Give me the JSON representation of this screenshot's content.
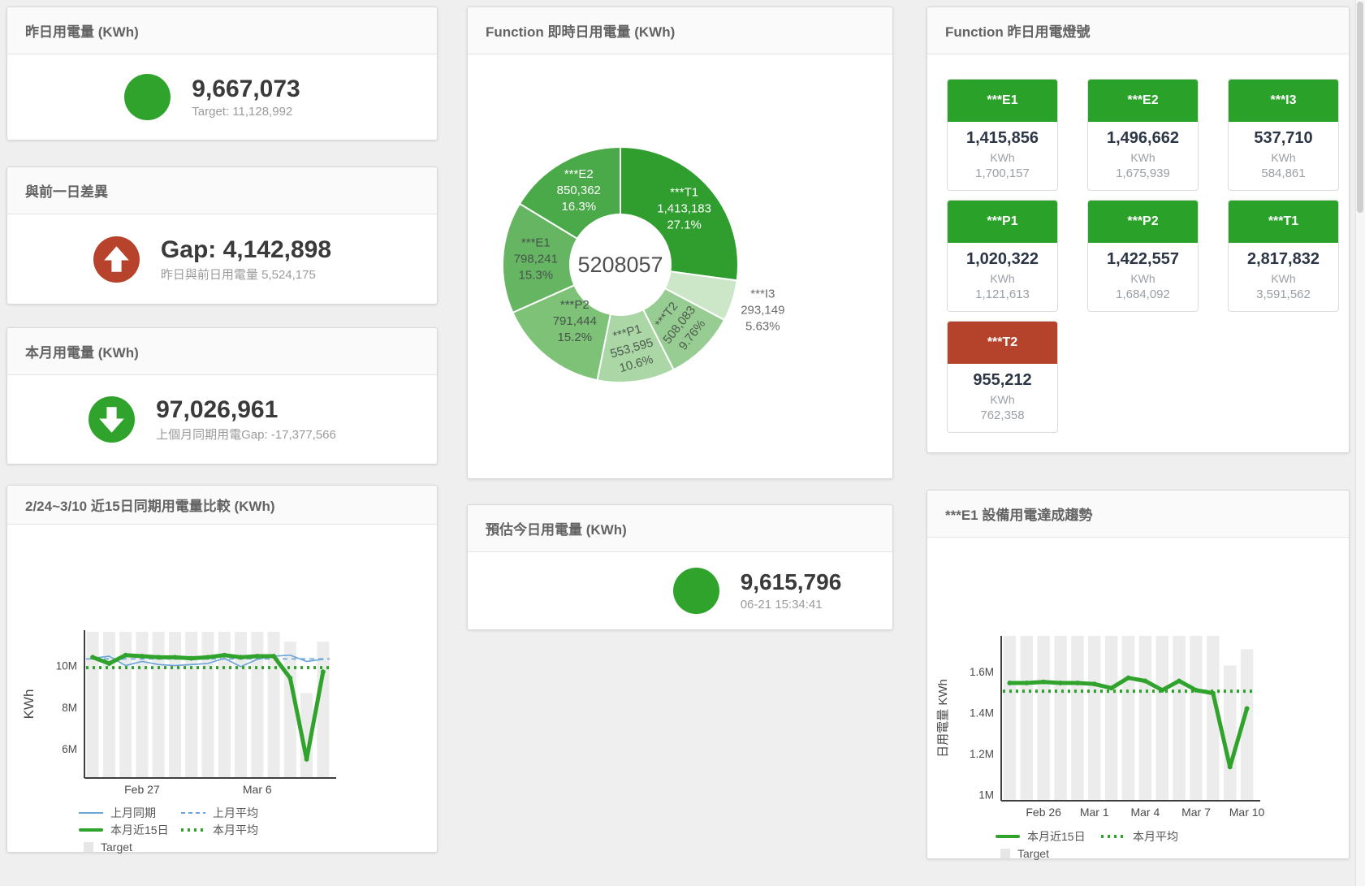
{
  "colors": {
    "green": "#2fa32c",
    "red": "#b8432d",
    "tile_green": "#2aa22a",
    "tile_red": "#b5432c",
    "bar_grey": "#ececec",
    "blue": "#6ba4d6",
    "axis": "#3f3f3f"
  },
  "cards": {
    "yesterday": {
      "title": "昨日用電量 (KWh)",
      "value": "9,667,073",
      "sub": "Target: 11,128,992"
    },
    "prev_gap": {
      "title": "與前一日差異",
      "value": "Gap: 4,142,898",
      "sub": "昨日與前日用電量 5,524,175"
    },
    "month": {
      "title": "本月用電量 (KWh)",
      "value": "97,026,961",
      "sub": "上個月同期用電Gap: -17,377,566"
    },
    "realtime": {
      "title": "Function 即時日用電量 (KWh)"
    },
    "estimate": {
      "title": "預估今日用電量 (KWh)",
      "value": "9,615,796",
      "sub": "06-21 15:34:41"
    },
    "lights": {
      "title": "Function 昨日用電燈號"
    },
    "compare": {
      "title": "2/24~3/10 近15日同期用電量比較 (KWh)"
    },
    "trend": {
      "title": "***E1 設備用電達成趨勢"
    }
  },
  "lights_tiles": [
    {
      "name": "***E1",
      "value": "1,415,856",
      "unit": "KWh",
      "target": "1,700,157",
      "status": "green"
    },
    {
      "name": "***E2",
      "value": "1,496,662",
      "unit": "KWh",
      "target": "1,675,939",
      "status": "green"
    },
    {
      "name": "***I3",
      "value": "537,710",
      "unit": "KWh",
      "target": "584,861",
      "status": "green"
    },
    {
      "name": "***P1",
      "value": "1,020,322",
      "unit": "KWh",
      "target": "1,121,613",
      "status": "green"
    },
    {
      "name": "***P2",
      "value": "1,422,557",
      "unit": "KWh",
      "target": "1,684,092",
      "status": "green"
    },
    {
      "name": "***T1",
      "value": "2,817,832",
      "unit": "KWh",
      "target": "3,591,562",
      "status": "green"
    },
    {
      "name": "***T2",
      "value": "955,212",
      "unit": "KWh",
      "target": "762,358",
      "status": "red"
    }
  ],
  "chart_data": [
    {
      "type": "pie",
      "title": "Function 即時日用電量 (KWh)",
      "center_total": "5208057",
      "slices": [
        {
          "name": "***T1",
          "value": 1413183,
          "label_value": "1,413,183",
          "pct": "27.1%",
          "color": "#2f9e2f",
          "text": "#ffffff"
        },
        {
          "name": "***I3",
          "value": 293149,
          "label_value": "293,149",
          "pct": "5.63%",
          "color": "#cbe7c8",
          "text": "#6b6b6b",
          "outside": true
        },
        {
          "name": "***T2",
          "value": 508083,
          "label_value": "508,083",
          "pct": "9.76%",
          "color": "#97cd92",
          "text": "#4d5c4d",
          "rotate": -52
        },
        {
          "name": "***P1",
          "value": 553595,
          "label_value": "553,595",
          "pct": "10.6%",
          "color": "#abd7a6",
          "text": "#4d5c4d",
          "rotate": -16
        },
        {
          "name": "***P2",
          "value": 791444,
          "label_value": "791,444",
          "pct": "15.2%",
          "color": "#7dc277",
          "text": "#45544a",
          "rf": 0.62
        },
        {
          "name": "***E1",
          "value": 798241,
          "label_value": "798,241",
          "pct": "15.3%",
          "color": "#66b562",
          "text": "#45544a"
        },
        {
          "name": "***E2",
          "value": 850362,
          "label_value": "850,362",
          "pct": "16.3%",
          "color": "#4aa948",
          "text": "#ffffff"
        }
      ]
    },
    {
      "type": "line",
      "title": "2/24~3/10 近15日同期用電量比較 (KWh)",
      "ylabel": "KWh",
      "n": 15,
      "ylim": [
        4.6,
        11.7
      ],
      "yticks": [
        {
          "v": 6,
          "t": "6M"
        },
        {
          "v": 8,
          "t": "8M"
        },
        {
          "v": 10,
          "t": "10M"
        }
      ],
      "xticks": [
        {
          "i": 3,
          "t": "Feb 27"
        },
        {
          "i": 10,
          "t": "Mar 6"
        }
      ],
      "series": [
        {
          "name": "Target",
          "style": "bar",
          "values": [
            11.62,
            11.62,
            11.62,
            11.62,
            11.62,
            11.62,
            11.62,
            11.62,
            11.62,
            11.62,
            11.62,
            11.62,
            11.15,
            8.68,
            11.15
          ]
        },
        {
          "name": "上月平均",
          "style": "dashed_blue",
          "const": 10.32
        },
        {
          "name": "上月同期",
          "style": "line_blue",
          "values": [
            10.35,
            10.45,
            10.0,
            10.2,
            10.05,
            10.0,
            10.05,
            10.1,
            10.35,
            9.95,
            10.3,
            10.45,
            10.5,
            10.2,
            10.3
          ]
        },
        {
          "name": "本月平均",
          "style": "dotted_green",
          "const": 9.9
        },
        {
          "name": "本月近15日",
          "style": "line_green",
          "markers": true,
          "values": [
            10.4,
            10.1,
            10.5,
            10.45,
            10.4,
            10.4,
            10.35,
            10.4,
            10.5,
            10.4,
            10.45,
            10.45,
            9.4,
            5.5,
            9.7
          ]
        }
      ],
      "legend_rows": [
        [
          {
            "label": "上月同期",
            "style": "line_blue"
          },
          {
            "label": "上月平均",
            "style": "dashed_blue"
          }
        ],
        [
          {
            "label": "本月近15日",
            "style": "line_green"
          },
          {
            "label": "本月平均",
            "style": "dotted_green"
          }
        ],
        [
          {
            "label": "Target",
            "style": "bar"
          }
        ]
      ]
    },
    {
      "type": "line",
      "title": "***E1 設備用電達成趨勢",
      "ylabel": "日用電量 KWh",
      "n": 15,
      "ylim": [
        0.97,
        1.775
      ],
      "yticks": [
        {
          "v": 1,
          "t": "1M"
        },
        {
          "v": 1.2,
          "t": "1.2M"
        },
        {
          "v": 1.4,
          "t": "1.4M"
        },
        {
          "v": 1.6,
          "t": "1.6M"
        }
      ],
      "xticks": [
        {
          "i": 2,
          "t": "Feb 26"
        },
        {
          "i": 5,
          "t": "Mar 1"
        },
        {
          "i": 8,
          "t": "Mar 4"
        },
        {
          "i": 11,
          "t": "Mar 7"
        },
        {
          "i": 14,
          "t": "Mar 10"
        }
      ],
      "series": [
        {
          "name": "Target",
          "style": "bar",
          "values": [
            1.775,
            1.775,
            1.775,
            1.775,
            1.775,
            1.775,
            1.775,
            1.775,
            1.775,
            1.775,
            1.775,
            1.775,
            1.775,
            1.63,
            1.71
          ]
        },
        {
          "name": "本月平均",
          "style": "dotted_green",
          "const": 1.505
        },
        {
          "name": "本月近15日",
          "style": "line_green",
          "markers": true,
          "values": [
            1.545,
            1.545,
            1.55,
            1.545,
            1.545,
            1.54,
            1.52,
            1.57,
            1.555,
            1.51,
            1.555,
            1.51,
            1.495,
            1.135,
            1.42
          ]
        }
      ],
      "legend_rows": [
        [
          {
            "label": "本月近15日",
            "style": "line_green"
          },
          {
            "label": "本月平均",
            "style": "dotted_green"
          }
        ],
        [
          {
            "label": "Target",
            "style": "bar"
          }
        ]
      ]
    }
  ]
}
